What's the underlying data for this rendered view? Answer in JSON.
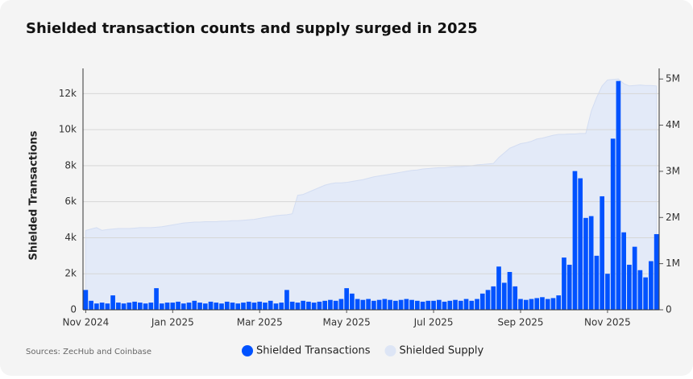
{
  "chart_data": {
    "type": "bar",
    "title": "Shielded transaction counts and supply surged in 2025",
    "source": "Sources: ZecHub and Coinbase",
    "y_label": "Shielded Transactions",
    "categories": [
      "Nov 2024",
      null,
      null,
      null,
      null,
      null,
      null,
      null,
      null,
      null,
      null,
      null,
      null,
      null,
      null,
      null,
      "Jan 2025",
      null,
      null,
      null,
      null,
      null,
      null,
      null,
      null,
      null,
      null,
      null,
      null,
      null,
      null,
      null,
      "Mar 2025",
      null,
      null,
      null,
      null,
      null,
      null,
      null,
      null,
      null,
      null,
      null,
      null,
      null,
      null,
      null,
      "May 2025",
      null,
      null,
      null,
      null,
      null,
      null,
      null,
      null,
      null,
      null,
      null,
      null,
      null,
      null,
      null,
      "Jul 2025",
      null,
      null,
      null,
      null,
      null,
      null,
      null,
      null,
      null,
      null,
      null,
      null,
      null,
      null,
      null,
      "Sep 2025",
      null,
      null,
      null,
      null,
      null,
      null,
      null,
      null,
      null,
      null,
      null,
      null,
      null,
      null,
      null,
      "Nov 2025",
      null,
      null,
      null,
      null,
      null,
      null,
      null,
      null,
      null
    ],
    "series": [
      {
        "name": "Shielded Transactions",
        "color": "#0052ff",
        "type": "bar",
        "axis": "y",
        "values": [
          1100,
          500,
          350,
          400,
          350,
          800,
          400,
          350,
          400,
          450,
          400,
          350,
          400,
          1200,
          350,
          400,
          400,
          450,
          350,
          400,
          500,
          400,
          350,
          450,
          400,
          350,
          450,
          400,
          350,
          400,
          450,
          400,
          450,
          400,
          500,
          350,
          400,
          1100,
          450,
          400,
          500,
          450,
          400,
          450,
          500,
          550,
          500,
          600,
          1200,
          900,
          600,
          550,
          600,
          500,
          550,
          600,
          550,
          500,
          550,
          600,
          550,
          500,
          450,
          500,
          500,
          550,
          450,
          500,
          550,
          500,
          600,
          500,
          600,
          900,
          1100,
          1300,
          2400,
          1500,
          2100,
          1300,
          600,
          550,
          600,
          650,
          700,
          600,
          650,
          800,
          2900,
          2500,
          7700,
          7300,
          5100,
          5200,
          3000,
          6300,
          2000,
          9500,
          12700,
          4300,
          2500,
          3500,
          2200,
          1800,
          2700,
          4200
        ]
      },
      {
        "name": "Shielded Supply",
        "color": "#e3eaf8",
        "type": "area",
        "axis": "y2",
        "values": [
          1720000,
          1750000,
          1780000,
          1720000,
          1740000,
          1750000,
          1760000,
          1760000,
          1760000,
          1770000,
          1780000,
          1780000,
          1780000,
          1790000,
          1800000,
          1820000,
          1840000,
          1860000,
          1880000,
          1890000,
          1900000,
          1900000,
          1910000,
          1910000,
          1910000,
          1920000,
          1920000,
          1930000,
          1930000,
          1940000,
          1950000,
          1960000,
          1980000,
          2000000,
          2020000,
          2040000,
          2050000,
          2060000,
          2080000,
          2480000,
          2500000,
          2550000,
          2600000,
          2650000,
          2700000,
          2730000,
          2750000,
          2750000,
          2760000,
          2780000,
          2800000,
          2820000,
          2850000,
          2880000,
          2900000,
          2920000,
          2940000,
          2960000,
          2980000,
          3000000,
          3020000,
          3030000,
          3050000,
          3060000,
          3070000,
          3080000,
          3080000,
          3090000,
          3100000,
          3100000,
          3110000,
          3120000,
          3140000,
          3150000,
          3160000,
          3170000,
          3300000,
          3400000,
          3500000,
          3550000,
          3600000,
          3620000,
          3650000,
          3700000,
          3720000,
          3750000,
          3780000,
          3800000,
          3800000,
          3810000,
          3810000,
          3820000,
          3820000,
          4300000,
          4600000,
          4850000,
          4980000,
          4990000,
          5000000,
          4900000,
          4850000,
          4860000,
          4870000,
          4860000,
          4860000,
          4850000
        ]
      }
    ],
    "ylim": [
      0,
      13400
    ],
    "yticks": [
      0,
      {
        "value": 2000,
        "label": "2k"
      },
      {
        "value": 4000,
        "label": "4k"
      },
      {
        "value": 6000,
        "label": "6k"
      },
      {
        "value": 8000,
        "label": "8k"
      },
      {
        "value": 10000,
        "label": "10k"
      },
      {
        "value": 12000,
        "label": "12k"
      }
    ],
    "y2lim": [
      0,
      5230000
    ],
    "y2ticks": [
      0,
      {
        "value": 1000000,
        "label": "1M"
      },
      {
        "value": 2000000,
        "label": "2M"
      },
      {
        "value": 3000000,
        "label": "3M"
      },
      {
        "value": 4000000,
        "label": "4M"
      },
      {
        "value": 5000000,
        "label": "5M"
      }
    ],
    "grid": true,
    "legend": "bottom"
  }
}
